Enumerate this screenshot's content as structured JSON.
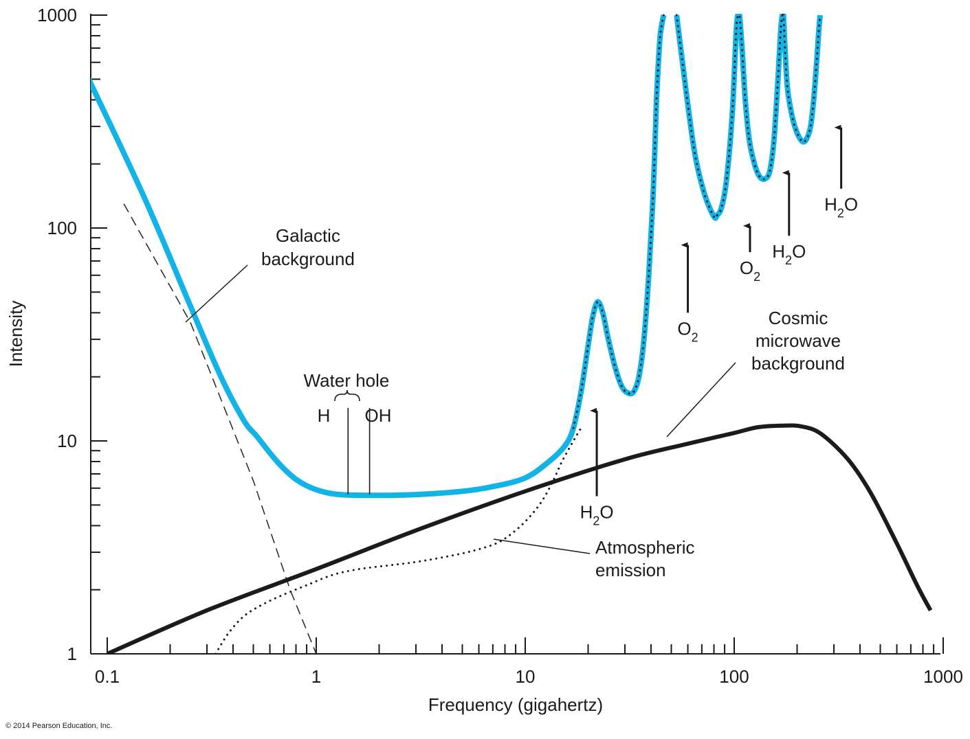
{
  "chart_data": {
    "type": "line",
    "xlabel": "Frequency (gigahertz)",
    "ylabel": "Intensity",
    "x_scale": "log",
    "y_scale": "log",
    "xlim": [
      0.08,
      1000
    ],
    "ylim": [
      1,
      1000
    ],
    "x_ticks": [
      {
        "value": 0.1,
        "label": "0.1"
      },
      {
        "value": 1,
        "label": "1"
      },
      {
        "value": 10,
        "label": "10"
      },
      {
        "value": 100,
        "label": "100"
      },
      {
        "value": 1000,
        "label": "1000"
      }
    ],
    "y_ticks": [
      {
        "value": 1,
        "label": "1"
      },
      {
        "value": 10,
        "label": "10"
      },
      {
        "value": 100,
        "label": "100"
      },
      {
        "value": 1000,
        "label": "1000"
      }
    ],
    "series": [
      {
        "key": "total",
        "style": "thick-blue-dotted-overlay",
        "color": "#12b3e6",
        "x": [
          0.08,
          0.15,
          0.25,
          0.35,
          0.45,
          0.52,
          0.65,
          0.8,
          1.0,
          1.3,
          2.0,
          3.0,
          5.0,
          7.0,
          10.0,
          13.0,
          15.5,
          17.0,
          18.5,
          20.0,
          21.0,
          22.2,
          23.5,
          25.0,
          27.0,
          29.0,
          31.0,
          33.0,
          35.0,
          37.0,
          39.0,
          41.0,
          42.5,
          44.0,
          45.0,
          46.0
        ],
        "y": [
          520,
          140,
          43,
          20,
          12.5,
          10.5,
          8.0,
          6.6,
          5.9,
          5.6,
          5.55,
          5.6,
          5.8,
          6.1,
          6.7,
          8.0,
          9.5,
          11.5,
          17,
          28,
          38,
          45,
          40,
          30,
          22,
          18,
          16.8,
          17,
          20,
          30,
          60,
          150,
          400,
          750,
          900,
          1000
        ]
      },
      {
        "key": "total-high",
        "style": "thick-blue-dotted-overlay",
        "color": "#12b3e6",
        "x": [
          53,
          56,
          60,
          65,
          72,
          80,
          83,
          87,
          92,
          98,
          102,
          104,
          106,
          109,
          113,
          118,
          125,
          132,
          140,
          148,
          155,
          162,
          167,
          170,
          172,
          175,
          180,
          190,
          200,
          212,
          222,
          232,
          240,
          248,
          254,
          258
        ],
        "y": [
          1000,
          650,
          380,
          220,
          145,
          113,
          115,
          125,
          170,
          350,
          800,
          1000,
          1000,
          700,
          400,
          260,
          200,
          175,
          170,
          185,
          260,
          500,
          850,
          1000,
          1000,
          700,
          450,
          330,
          280,
          255,
          262,
          300,
          400,
          600,
          850,
          1000
        ]
      },
      {
        "key": "galactic-background",
        "style": "dashed",
        "color": "#222222",
        "x": [
          0.12,
          0.25,
          0.5,
          0.75,
          1.0
        ],
        "y": [
          130,
          36,
          6.5,
          2.0,
          1.0
        ]
      },
      {
        "key": "cosmic-microwave-background",
        "style": "thick-black",
        "color": "#1e1a1a",
        "x": [
          0.1,
          0.3,
          1,
          3,
          10,
          30,
          60,
          100,
          130,
          170,
          210,
          260,
          350,
          450,
          600,
          750,
          870
        ],
        "y": [
          1.0,
          1.6,
          2.5,
          3.8,
          5.8,
          8.2,
          9.7,
          10.9,
          11.6,
          11.8,
          11.7,
          10.8,
          8.2,
          5.7,
          3.3,
          2.1,
          1.6
        ]
      },
      {
        "key": "atmospheric-emission",
        "style": "dotted",
        "color": "#1e1a1a",
        "x": [
          0.33,
          0.38,
          0.45,
          0.55,
          0.7,
          0.9,
          1.2,
          1.6,
          2.2,
          3.0,
          4.5,
          6.0,
          7.5,
          9.0,
          10.5,
          12.0,
          13.5,
          15.0,
          16.5,
          17.5,
          18.5
        ],
        "y": [
          1.0,
          1.25,
          1.5,
          1.7,
          1.9,
          2.1,
          2.35,
          2.5,
          2.6,
          2.7,
          2.9,
          3.1,
          3.35,
          3.8,
          4.4,
          5.2,
          6.4,
          8.0,
          9.5,
          10.5,
          11.5
        ]
      }
    ],
    "annotations": {
      "galactic": {
        "line1": "Galactic",
        "line2": "background"
      },
      "water_hole": {
        "title": "Water hole",
        "h": "H",
        "oh": "OH",
        "x_h": 1.42,
        "x_oh": 1.8
      },
      "cmb": {
        "line1": "Cosmic",
        "line2": "microwave",
        "line3": "background"
      },
      "atmos": {
        "line1": "Atmospheric",
        "line2": "emission"
      }
    },
    "absorption_lines": [
      {
        "mol": "H",
        "sub": "2",
        "tail": "O",
        "x": 22,
        "y_bottom": 5.5,
        "y_top": 14.5
      },
      {
        "mol": "O",
        "sub": "2",
        "tail": "",
        "x": 60,
        "y_bottom": 40,
        "y_top": 87
      },
      {
        "mol": "O",
        "sub": "2",
        "tail": "",
        "x": 119,
        "y_bottom": 77,
        "y_top": 107
      },
      {
        "mol": "H",
        "sub": "2",
        "tail": "O",
        "x": 183,
        "y_bottom": 92,
        "y_top": 190
      },
      {
        "mol": "H",
        "sub": "2",
        "tail": "O",
        "x": 325,
        "y_bottom": 153,
        "y_top": 310
      }
    ]
  },
  "copyright": "© 2014 Pearson Education, Inc."
}
